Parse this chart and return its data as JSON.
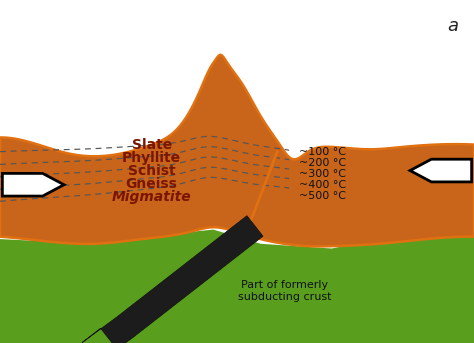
{
  "bg_color": "#ffffff",
  "ground_color": "#5a9e1e",
  "crust_fill": "#c8651a",
  "crust_outline": "#e07010",
  "dashed_line_color": "#555555",
  "orange_line_color": "#e07010",
  "arrow_fill": "#ffffff",
  "arrow_edge": "#000000",
  "rock_labels": [
    "Slate",
    "Phyllite",
    "Schist",
    "Gneiss",
    "Migmatite"
  ],
  "rock_label_color": "#7a1500",
  "temp_labels": [
    "~100 °C",
    "~200 °C",
    "~300 °C",
    "~400 °C",
    "~500 °C"
  ],
  "temp_label_color": "#111111",
  "subduct_text": "Part of formerly\nsubducting crust",
  "label_a": "a",
  "rock_fontsize": 10,
  "temp_fontsize": 8,
  "label_a_fontsize": 13
}
